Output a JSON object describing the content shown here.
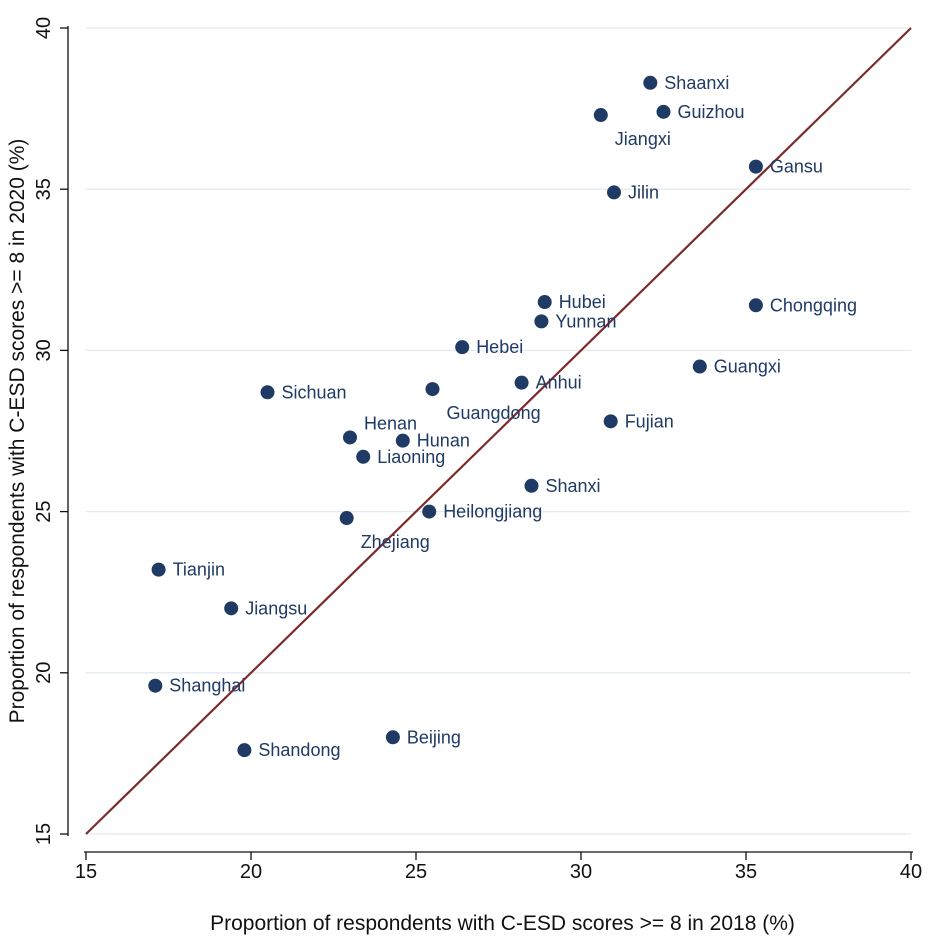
{
  "chart_data": {
    "type": "scatter",
    "title": "",
    "xlabel": "Proportion of respondents with C-ESD scores >= 8 in 2018 (%)",
    "ylabel": "Proportion of respondents with C-ESD scores >= 8 in 2020 (%)",
    "xlim": [
      15,
      40
    ],
    "ylim": [
      15,
      40
    ],
    "xticks": [
      15,
      20,
      25,
      30,
      35,
      40
    ],
    "yticks": [
      15,
      20,
      25,
      30,
      35,
      40
    ],
    "grid": "horizontal",
    "reference_line": {
      "type": "y=x",
      "from": 15,
      "to": 40,
      "color": "#7b2b2b"
    },
    "marker_color": "#1f3a64",
    "points": [
      {
        "label": "Shaanxi",
        "x": 32.1,
        "y": 38.3,
        "label_pos": "right"
      },
      {
        "label": "Guizhou",
        "x": 32.5,
        "y": 37.4,
        "label_pos": "right"
      },
      {
        "label": "Jiangxi",
        "x": 30.6,
        "y": 37.3,
        "label_pos": "below-right"
      },
      {
        "label": "Gansu",
        "x": 35.3,
        "y": 35.7,
        "label_pos": "right"
      },
      {
        "label": "Jilin",
        "x": 31.0,
        "y": 34.9,
        "label_pos": "right"
      },
      {
        "label": "Hubei",
        "x": 28.9,
        "y": 31.5,
        "label_pos": "right"
      },
      {
        "label": "Yunnan",
        "x": 28.8,
        "y": 30.9,
        "label_pos": "right"
      },
      {
        "label": "Chongqing",
        "x": 35.3,
        "y": 31.4,
        "label_pos": "right"
      },
      {
        "label": "Hebei",
        "x": 26.4,
        "y": 30.1,
        "label_pos": "right"
      },
      {
        "label": "Guangxi",
        "x": 33.6,
        "y": 29.5,
        "label_pos": "right"
      },
      {
        "label": "Anhui",
        "x": 28.2,
        "y": 29.0,
        "label_pos": "right"
      },
      {
        "label": "Guangdong",
        "x": 25.5,
        "y": 28.8,
        "label_pos": "below-right"
      },
      {
        "label": "Sichuan",
        "x": 20.5,
        "y": 28.7,
        "label_pos": "right"
      },
      {
        "label": "Fujian",
        "x": 30.9,
        "y": 27.8,
        "label_pos": "right"
      },
      {
        "label": "Henan",
        "x": 23.0,
        "y": 27.3,
        "label_pos": "above-right"
      },
      {
        "label": "Hunan",
        "x": 24.6,
        "y": 27.2,
        "label_pos": "right"
      },
      {
        "label": "Liaoning",
        "x": 23.4,
        "y": 26.7,
        "label_pos": "right"
      },
      {
        "label": "Shanxi",
        "x": 28.5,
        "y": 25.8,
        "label_pos": "right"
      },
      {
        "label": "Heilongjiang",
        "x": 25.4,
        "y": 25.0,
        "label_pos": "right"
      },
      {
        "label": "Zhejiang",
        "x": 22.9,
        "y": 24.8,
        "label_pos": "below-right"
      },
      {
        "label": "Tianjin",
        "x": 17.2,
        "y": 23.2,
        "label_pos": "right"
      },
      {
        "label": "Jiangsu",
        "x": 19.4,
        "y": 22.0,
        "label_pos": "right"
      },
      {
        "label": "Shanghai",
        "x": 17.1,
        "y": 19.6,
        "label_pos": "right"
      },
      {
        "label": "Beijing",
        "x": 24.3,
        "y": 18.0,
        "label_pos": "right"
      },
      {
        "label": "Shandong",
        "x": 19.8,
        "y": 17.6,
        "label_pos": "right"
      }
    ]
  }
}
